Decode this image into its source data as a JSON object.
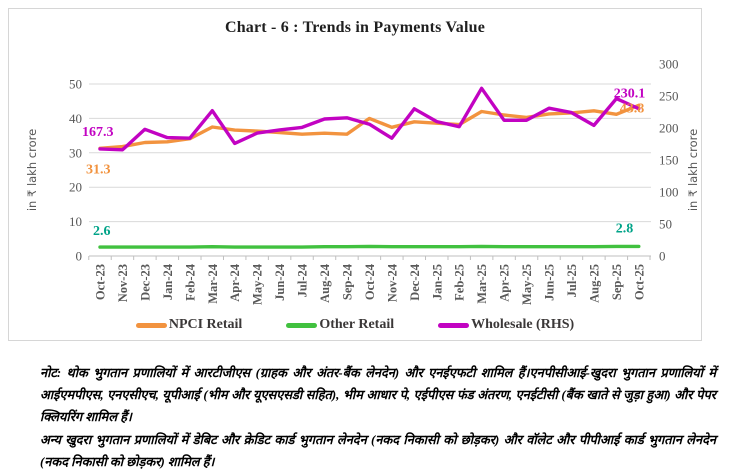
{
  "title": "Chart - 6 : Trends in Payments Value",
  "chart_data": {
    "type": "line",
    "title": "Chart - 6 : Trends in Payments Value",
    "grid": true,
    "legend_position": "bottom",
    "categories": [
      "Oct-23",
      "Nov-23",
      "Dec-23",
      "Jan-24",
      "Feb-24",
      "Mar-24",
      "Apr-24",
      "May-24",
      "Jun-24",
      "Jul-24",
      "Aug-24",
      "Sep-24",
      "Oct-24",
      "Nov-24",
      "Dec-24",
      "Jan-25",
      "Feb-25",
      "Mar-25",
      "Apr-25",
      "May-25",
      "Jun-25",
      "Jul-25",
      "Aug-25",
      "Sep-25",
      "Oct-25"
    ],
    "left_axis": {
      "label": "in ₹ lakh crore",
      "min": 0,
      "max": 50,
      "ticks": [
        0,
        10,
        20,
        30,
        40,
        50
      ]
    },
    "right_axis": {
      "label": "in ₹ lakh crore",
      "min": 0,
      "max": 300,
      "ticks": [
        0,
        50,
        100,
        150,
        200,
        250,
        300
      ]
    },
    "series": [
      {
        "name": "NPCI Retail",
        "axis": "left",
        "color": "#F2933F",
        "first_label": "31.3",
        "last_label": "43.8",
        "values": [
          31.3,
          31.8,
          33.0,
          33.2,
          34.1,
          37.5,
          36.6,
          36.3,
          35.9,
          35.4,
          35.7,
          35.4,
          40.0,
          37.4,
          39.0,
          38.6,
          38.2,
          42.0,
          41.0,
          40.3,
          41.3,
          41.6,
          42.2,
          41.2,
          43.8
        ]
      },
      {
        "name": "Other Retail",
        "axis": "left",
        "color": "#41C13F",
        "label_color": "#00A388",
        "first_label": "2.6",
        "last_label": "2.8",
        "values": [
          2.6,
          2.6,
          2.6,
          2.6,
          2.6,
          2.7,
          2.6,
          2.6,
          2.6,
          2.6,
          2.7,
          2.7,
          2.8,
          2.7,
          2.7,
          2.7,
          2.7,
          2.8,
          2.7,
          2.7,
          2.7,
          2.7,
          2.7,
          2.8,
          2.8
        ]
      },
      {
        "name": "Wholesale (RHS)",
        "axis": "right",
        "color": "#C203C2",
        "first_label": "167.3",
        "last_label": "230.1",
        "values": [
          167.3,
          166.0,
          198.0,
          185.0,
          184.0,
          227.0,
          176.0,
          192.0,
          197.0,
          201.0,
          214.0,
          216.0,
          206.0,
          184.0,
          230.0,
          210.0,
          202.0,
          262.0,
          212.0,
          212.0,
          231.0,
          224.0,
          204.0,
          246.0,
          230.1
        ]
      }
    ]
  },
  "note": {
    "para1": "नोट: थोक भुगतान प्रणालियों में आरटीजीएस (ग्राहक और अंतर-बैंक लेनदेन) और एनईएफटी शामिल हैं।एनपीसीआई-खुदरा भुगतान प्रणालियों में आईएमपीएस, एनएसीएच, यूपीआई (भीम और यूएसएसडी सहित), भीम आधार पे, एईपीएस फंड अंतरण, एनईटीसी (बैंक खाते से जुड़ा हुआ) और पेपर क्लियरिंग शामिल हैं।",
    "para2": "अन्य खुदरा भुगतान प्रणालियों में डेबिट और क्रेडिट कार्ड भुगतान लेनदेन (नकद निकासी को छोड़कर) और वॉलेट और पीपीआई कार्ड भुगतान लेनदेन (नकद निकासी को छोड़कर) शामिल हैं।"
  }
}
